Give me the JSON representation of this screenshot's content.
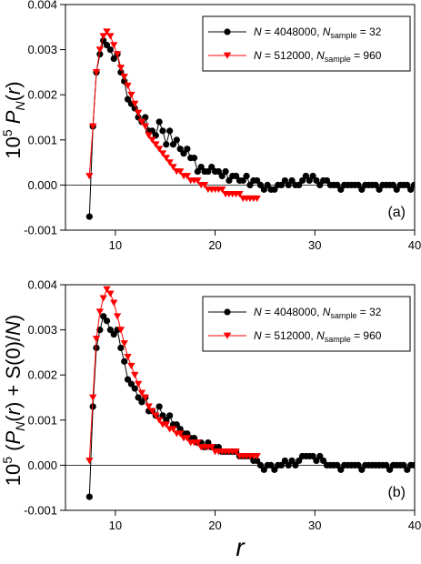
{
  "chart_data": [
    {
      "type": "line",
      "panel_label": "(a)",
      "ylabel": "10^5 P_N(r)",
      "xlim": [
        5,
        40
      ],
      "ylim": [
        -0.001,
        0.004
      ],
      "x_ticks": [
        10,
        20,
        30,
        40
      ],
      "y_ticks": [
        -0.001,
        0.0,
        0.001,
        0.002,
        0.003,
        0.004
      ],
      "y_tick_labels": [
        "-0.001",
        "0.000",
        "0.001",
        "0.002",
        "0.003",
        "0.004"
      ],
      "legend_position": "top-right",
      "series": [
        {
          "name": "N = 4048000, N_sample = 32",
          "color": "#000000",
          "marker": "circle",
          "x": [
            7.4,
            7.75,
            8.1,
            8.45,
            8.8,
            9.15,
            9.5,
            9.85,
            10.2,
            10.55,
            10.9,
            11.25,
            11.6,
            11.95,
            12.3,
            12.65,
            13.0,
            13.35,
            13.7,
            14.05,
            14.4,
            14.75,
            15.1,
            15.45,
            15.8,
            16.15,
            16.5,
            16.85,
            17.2,
            17.55,
            17.9,
            18.25,
            18.6,
            18.95,
            19.3,
            19.65,
            20.0,
            20.35,
            20.7,
            21.05,
            21.4,
            21.75,
            22.1,
            22.45,
            22.8,
            23.15,
            23.5,
            23.85,
            24.2,
            24.55,
            24.9,
            25.25,
            25.6,
            25.95,
            26.3,
            26.65,
            27.0,
            27.35,
            27.7,
            28.05,
            28.4,
            28.75,
            29.1,
            29.45,
            29.8,
            30.15,
            30.5,
            30.85,
            31.2,
            31.55,
            31.9,
            32.25,
            32.6,
            32.95,
            33.3,
            33.65,
            34.0,
            34.35,
            34.7,
            35.05,
            35.4,
            35.75,
            36.1,
            36.45,
            36.8,
            37.15,
            37.5,
            37.85,
            38.2,
            38.55,
            38.9,
            39.25,
            39.6,
            39.95
          ],
          "y": [
            -0.0007,
            0.0013,
            0.0025,
            0.0029,
            0.0032,
            0.0031,
            0.003,
            0.0028,
            0.0029,
            0.0025,
            0.0023,
            0.0019,
            0.0018,
            0.0017,
            0.0015,
            0.0014,
            0.0015,
            0.0012,
            0.0012,
            0.0011,
            0.0014,
            0.0012,
            0.0009,
            0.0012,
            0.0009,
            0.001,
            0.0008,
            0.0007,
            0.0008,
            0.0006,
            0.0006,
            0.0003,
            0.0004,
            0.0003,
            0.0003,
            0.0004,
            0.0003,
            0.0003,
            0.0002,
            0.0003,
            0.0001,
            0.0002,
            0.0002,
            0.0001,
            0.0001,
            0.0002,
            0.0,
            0.0001,
            0.0001,
            0.0,
            -0.0001,
            0.0,
            -0.0001,
            -0.0001,
            0.0,
            0.0,
            0.0001,
            0.0,
            0.0001,
            0.0,
            0.0,
            0.0001,
            0.0002,
            0.0001,
            0.0002,
            0.0001,
            0.0,
            0.0001,
            0.0001,
            0.0,
            0.0,
            0.0,
            -0.0001,
            0.0,
            0.0,
            0.0,
            0.0,
            0.0,
            -0.0001,
            0.0,
            0.0,
            0.0,
            0.0,
            -0.0001,
            0.0,
            0.0,
            0.0,
            0.0,
            -0.0001,
            0.0,
            0.0,
            0.0,
            -0.0001,
            0.0
          ]
        },
        {
          "name": "N = 512000, N_sample = 960",
          "color": "#ff0000",
          "marker": "triangle-down",
          "x": [
            7.4,
            7.75,
            8.1,
            8.45,
            8.8,
            9.15,
            9.5,
            9.85,
            10.2,
            10.55,
            10.9,
            11.25,
            11.6,
            11.95,
            12.3,
            12.65,
            13.0,
            13.35,
            13.7,
            14.05,
            14.4,
            14.75,
            15.1,
            15.45,
            15.8,
            16.15,
            16.5,
            16.85,
            17.2,
            17.55,
            17.9,
            18.25,
            18.6,
            18.95,
            19.3,
            19.65,
            20.0,
            20.35,
            20.7,
            21.05,
            21.4,
            21.75,
            22.1,
            22.45,
            22.8,
            23.15,
            23.5,
            23.85,
            24.2
          ],
          "y": [
            0.0002,
            0.0013,
            0.0025,
            0.003,
            0.0033,
            0.0034,
            0.0033,
            0.0031,
            0.0029,
            0.0026,
            0.0024,
            0.0022,
            0.002,
            0.0018,
            0.0016,
            0.0014,
            0.0013,
            0.0011,
            0.001,
            0.0009,
            0.0008,
            0.0007,
            0.0006,
            0.0005,
            0.0004,
            0.0003,
            0.0003,
            0.0002,
            0.0002,
            0.0001,
            0.0001,
            0.0001,
            0.0,
            0.0,
            -0.0001,
            -0.0001,
            -0.0001,
            -0.0001,
            -0.0001,
            -0.0002,
            -0.0002,
            -0.0002,
            -0.0002,
            -0.0002,
            -0.0003,
            -0.0003,
            -0.0003,
            -0.0003,
            -0.0003
          ]
        }
      ]
    },
    {
      "type": "line",
      "panel_label": "(b)",
      "ylabel": "10^5 (P_N(r) + S(0)/N)",
      "xlim": [
        5,
        40
      ],
      "ylim": [
        -0.001,
        0.004
      ],
      "x_ticks": [
        10,
        20,
        30,
        40
      ],
      "y_ticks": [
        -0.001,
        0.0,
        0.001,
        0.002,
        0.003,
        0.004
      ],
      "y_tick_labels": [
        "-0.001",
        "0.000",
        "0.001",
        "0.002",
        "0.003",
        "0.004"
      ],
      "legend_position": "top-right",
      "series": [
        {
          "name": "N = 4048000, N_sample = 32",
          "color": "#000000",
          "marker": "circle",
          "x": [
            7.4,
            7.75,
            8.1,
            8.45,
            8.8,
            9.15,
            9.5,
            9.85,
            10.2,
            10.55,
            10.9,
            11.25,
            11.6,
            11.95,
            12.3,
            12.65,
            13.0,
            13.35,
            13.7,
            14.05,
            14.4,
            14.75,
            15.1,
            15.45,
            15.8,
            16.15,
            16.5,
            16.85,
            17.2,
            17.55,
            17.9,
            18.25,
            18.6,
            18.95,
            19.3,
            19.65,
            20.0,
            20.35,
            20.7,
            21.05,
            21.4,
            21.75,
            22.1,
            22.45,
            22.8,
            23.15,
            23.5,
            23.85,
            24.2,
            24.55,
            24.9,
            25.25,
            25.6,
            25.95,
            26.3,
            26.65,
            27.0,
            27.35,
            27.7,
            28.05,
            28.4,
            28.75,
            29.1,
            29.45,
            29.8,
            30.15,
            30.5,
            30.85,
            31.2,
            31.55,
            31.9,
            32.25,
            32.6,
            32.95,
            33.3,
            33.65,
            34.0,
            34.35,
            34.7,
            35.05,
            35.4,
            35.75,
            36.1,
            36.45,
            36.8,
            37.15,
            37.5,
            37.85,
            38.2,
            38.55,
            38.9,
            39.25,
            39.6,
            39.95
          ],
          "y": [
            -0.0007,
            0.0013,
            0.0026,
            0.003,
            0.0033,
            0.0032,
            0.003,
            0.0029,
            0.003,
            0.0026,
            0.0023,
            0.0019,
            0.0018,
            0.0017,
            0.0015,
            0.0014,
            0.0015,
            0.0012,
            0.0012,
            0.0011,
            0.0013,
            0.0011,
            0.001,
            0.0011,
            0.0009,
            0.0009,
            0.0008,
            0.0007,
            0.0007,
            0.0006,
            0.0006,
            0.0005,
            0.0005,
            0.0004,
            0.0005,
            0.0004,
            0.0004,
            0.0004,
            0.0003,
            0.0003,
            0.0003,
            0.0003,
            0.0003,
            0.0002,
            0.0002,
            0.0002,
            0.0002,
            0.0001,
            0.0001,
            0.0,
            -0.0001,
            0.0,
            0.0,
            -0.0001,
            0.0,
            0.0,
            0.0001,
            0.0,
            0.0001,
            0.0,
            0.0001,
            0.0002,
            0.0002,
            0.0002,
            0.0002,
            0.0001,
            0.0002,
            0.0001,
            0.0,
            0.0,
            0.0,
            0.0,
            -0.0001,
            0.0,
            0.0,
            0.0,
            0.0,
            0.0,
            -0.0001,
            0.0,
            0.0,
            0.0,
            0.0,
            0.0,
            0.0,
            0.0,
            -0.0001,
            0.0,
            0.0,
            0.0,
            0.0,
            -0.0001,
            0.0,
            0.0
          ]
        },
        {
          "name": "N = 512000, N_sample = 960",
          "color": "#ff0000",
          "marker": "triangle-down",
          "x": [
            7.4,
            7.75,
            8.1,
            8.45,
            8.8,
            9.15,
            9.5,
            9.85,
            10.2,
            10.55,
            10.9,
            11.25,
            11.6,
            11.95,
            12.3,
            12.65,
            13.0,
            13.35,
            13.7,
            14.05,
            14.4,
            14.75,
            15.1,
            15.45,
            15.8,
            16.15,
            16.5,
            16.85,
            17.2,
            17.55,
            17.9,
            18.25,
            18.6,
            18.95,
            19.3,
            19.65,
            20.0,
            20.35,
            20.7,
            21.05,
            21.4,
            21.75,
            22.1,
            22.45,
            22.8,
            23.15,
            23.5,
            23.85,
            24.2
          ],
          "y": [
            0.0001,
            0.0015,
            0.0028,
            0.0034,
            0.0037,
            0.0039,
            0.0038,
            0.0036,
            0.0033,
            0.003,
            0.0027,
            0.0024,
            0.0022,
            0.002,
            0.0018,
            0.0016,
            0.0015,
            0.0013,
            0.0012,
            0.0011,
            0.001,
            0.0009,
            0.0009,
            0.0008,
            0.0008,
            0.0007,
            0.0007,
            0.0006,
            0.0006,
            0.0005,
            0.0005,
            0.0005,
            0.0004,
            0.0004,
            0.0004,
            0.0004,
            0.0003,
            0.0003,
            0.0003,
            0.0003,
            0.0003,
            0.0003,
            0.0003,
            0.0002,
            0.0002,
            0.0002,
            0.0002,
            0.0002,
            0.0002
          ]
        }
      ]
    }
  ]
}
